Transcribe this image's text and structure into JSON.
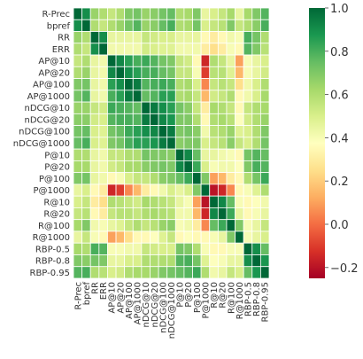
{
  "chart_data": {
    "type": "heatmap",
    "title": "",
    "xlabel": "",
    "ylabel": "",
    "labels": [
      "R-Prec",
      "bpref",
      "RR",
      "ERR",
      "AP@10",
      "AP@20",
      "AP@100",
      "AP@1000",
      "nDCG@10",
      "nDCG@20",
      "nDCG@100",
      "nDCG@1000",
      "P@10",
      "P@20",
      "P@100",
      "P@1000",
      "R@10",
      "R@20",
      "R@100",
      "R@1000",
      "RBP-0.5",
      "RBP-0.8",
      "RBP-0.95"
    ],
    "y_tick_labels": [
      "R-Prec",
      "bpref",
      "RR",
      "ERR",
      "AP@10",
      "AP@20",
      "AP@100",
      "AP@1000",
      "nDCG@10",
      "nDCG@20",
      "nDCG@100",
      "nDCG@1000",
      "P@10",
      "P@20",
      "P@100",
      "P@1000",
      "R@10",
      "R@20",
      "R@100",
      "R@1000",
      "RBP-0.5",
      "RBP-0.8",
      "RBP-0.95"
    ],
    "x_tick_labels": [
      "R-Prec",
      "bpref",
      "RR",
      "ERR",
      "AP@10",
      "AP@20",
      "AP@100",
      "AP@1000",
      "nDCG@10",
      "nDCG@20",
      "nDCG@100",
      "nDCG@1000",
      "P@10",
      "P@20",
      "P@100",
      "P@1000",
      "R@10",
      "R@20",
      "R@100",
      "R@1000",
      "RBP-0.5",
      "RBP-0.8",
      "RBP-0.95"
    ],
    "values": [
      [
        1.0,
        0.9,
        0.65,
        0.6,
        0.55,
        0.6,
        0.7,
        0.72,
        0.65,
        0.68,
        0.72,
        0.75,
        0.6,
        0.62,
        0.7,
        0.45,
        0.5,
        0.55,
        0.62,
        0.45,
        0.62,
        0.7,
        0.78
      ],
      [
        0.9,
        1.0,
        0.6,
        0.55,
        0.6,
        0.65,
        0.72,
        0.78,
        0.65,
        0.68,
        0.75,
        0.8,
        0.6,
        0.62,
        0.72,
        0.5,
        0.55,
        0.58,
        0.7,
        0.55,
        0.6,
        0.68,
        0.8
      ],
      [
        0.65,
        0.6,
        1.0,
        0.9,
        0.45,
        0.45,
        0.45,
        0.45,
        0.55,
        0.52,
        0.5,
        0.5,
        0.45,
        0.45,
        0.45,
        0.35,
        0.3,
        0.35,
        0.42,
        0.4,
        0.8,
        0.72,
        0.6
      ],
      [
        0.6,
        0.55,
        0.9,
        1.0,
        0.42,
        0.42,
        0.42,
        0.42,
        0.52,
        0.5,
        0.48,
        0.48,
        0.42,
        0.42,
        0.42,
        0.3,
        0.25,
        0.3,
        0.4,
        0.35,
        0.78,
        0.7,
        0.58
      ],
      [
        0.55,
        0.6,
        0.45,
        0.42,
        1.0,
        0.92,
        0.85,
        0.8,
        0.82,
        0.78,
        0.72,
        0.7,
        0.55,
        0.52,
        0.35,
        -0.15,
        0.6,
        0.55,
        0.45,
        0.1,
        0.4,
        0.45,
        0.5
      ],
      [
        0.6,
        0.65,
        0.45,
        0.42,
        0.92,
        1.0,
        0.9,
        0.85,
        0.8,
        0.8,
        0.75,
        0.72,
        0.55,
        0.55,
        0.4,
        -0.1,
        0.58,
        0.58,
        0.48,
        0.15,
        0.4,
        0.45,
        0.52
      ],
      [
        0.7,
        0.72,
        0.45,
        0.42,
        0.85,
        0.9,
        1.0,
        0.95,
        0.78,
        0.8,
        0.82,
        0.8,
        0.6,
        0.62,
        0.5,
        0.05,
        0.55,
        0.58,
        0.55,
        0.25,
        0.42,
        0.5,
        0.6
      ],
      [
        0.72,
        0.78,
        0.45,
        0.42,
        0.8,
        0.85,
        0.95,
        1.0,
        0.75,
        0.78,
        0.85,
        0.85,
        0.6,
        0.62,
        0.55,
        0.15,
        0.52,
        0.55,
        0.6,
        0.35,
        0.42,
        0.5,
        0.62
      ],
      [
        0.65,
        0.65,
        0.55,
        0.52,
        0.82,
        0.8,
        0.78,
        0.75,
        1.0,
        0.95,
        0.9,
        0.85,
        0.72,
        0.68,
        0.55,
        0.3,
        0.62,
        0.6,
        0.55,
        0.35,
        0.55,
        0.6,
        0.62
      ],
      [
        0.68,
        0.68,
        0.52,
        0.5,
        0.78,
        0.8,
        0.8,
        0.78,
        0.95,
        1.0,
        0.92,
        0.88,
        0.7,
        0.7,
        0.6,
        0.35,
        0.6,
        0.62,
        0.58,
        0.38,
        0.52,
        0.6,
        0.65
      ],
      [
        0.72,
        0.75,
        0.5,
        0.48,
        0.72,
        0.75,
        0.82,
        0.85,
        0.9,
        0.92,
        1.0,
        0.95,
        0.7,
        0.72,
        0.68,
        0.42,
        0.58,
        0.6,
        0.65,
        0.48,
        0.5,
        0.6,
        0.7
      ],
      [
        0.75,
        0.8,
        0.5,
        0.48,
        0.7,
        0.72,
        0.8,
        0.85,
        0.85,
        0.88,
        0.95,
        1.0,
        0.68,
        0.7,
        0.7,
        0.5,
        0.55,
        0.58,
        0.68,
        0.55,
        0.5,
        0.6,
        0.72
      ],
      [
        0.6,
        0.6,
        0.45,
        0.42,
        0.55,
        0.55,
        0.6,
        0.6,
        0.72,
        0.7,
        0.7,
        0.68,
        1.0,
        0.92,
        0.75,
        0.45,
        0.45,
        0.42,
        0.4,
        0.35,
        0.72,
        0.78,
        0.75
      ],
      [
        0.62,
        0.62,
        0.45,
        0.42,
        0.52,
        0.55,
        0.62,
        0.62,
        0.68,
        0.7,
        0.72,
        0.7,
        0.92,
        1.0,
        0.82,
        0.5,
        0.4,
        0.42,
        0.42,
        0.38,
        0.7,
        0.8,
        0.78
      ],
      [
        0.7,
        0.72,
        0.45,
        0.42,
        0.35,
        0.4,
        0.5,
        0.55,
        0.55,
        0.6,
        0.68,
        0.7,
        0.75,
        0.82,
        1.0,
        0.7,
        0.1,
        0.15,
        0.3,
        0.35,
        0.6,
        0.72,
        0.82
      ],
      [
        0.45,
        0.5,
        0.35,
        0.3,
        -0.15,
        -0.1,
        0.05,
        0.15,
        0.3,
        0.35,
        0.42,
        0.5,
        0.45,
        0.5,
        0.7,
        1.0,
        -0.2,
        -0.15,
        0.05,
        0.35,
        0.4,
        0.48,
        0.6
      ],
      [
        0.5,
        0.55,
        0.3,
        0.25,
        0.6,
        0.58,
        0.55,
        0.52,
        0.62,
        0.6,
        0.58,
        0.55,
        0.45,
        0.4,
        0.1,
        -0.2,
        1.0,
        0.92,
        0.75,
        0.4,
        0.35,
        0.38,
        0.42
      ],
      [
        0.55,
        0.58,
        0.35,
        0.3,
        0.55,
        0.58,
        0.58,
        0.55,
        0.6,
        0.62,
        0.6,
        0.58,
        0.42,
        0.42,
        0.15,
        -0.15,
        0.92,
        1.0,
        0.82,
        0.45,
        0.35,
        0.4,
        0.45
      ],
      [
        0.62,
        0.7,
        0.42,
        0.4,
        0.45,
        0.48,
        0.55,
        0.6,
        0.55,
        0.58,
        0.65,
        0.68,
        0.4,
        0.42,
        0.3,
        0.05,
        0.75,
        0.82,
        1.0,
        0.7,
        0.4,
        0.45,
        0.55
      ],
      [
        0.45,
        0.55,
        0.4,
        0.35,
        0.1,
        0.15,
        0.25,
        0.35,
        0.35,
        0.38,
        0.48,
        0.55,
        0.35,
        0.38,
        0.35,
        0.35,
        0.4,
        0.45,
        0.7,
        1.0,
        0.4,
        0.45,
        0.5
      ],
      [
        0.62,
        0.6,
        0.8,
        0.78,
        0.4,
        0.4,
        0.42,
        0.42,
        0.55,
        0.52,
        0.5,
        0.5,
        0.72,
        0.7,
        0.6,
        0.4,
        0.35,
        0.35,
        0.4,
        0.4,
        1.0,
        0.9,
        0.75
      ],
      [
        0.7,
        0.68,
        0.72,
        0.7,
        0.45,
        0.45,
        0.5,
        0.5,
        0.6,
        0.6,
        0.6,
        0.6,
        0.78,
        0.8,
        0.72,
        0.48,
        0.38,
        0.4,
        0.45,
        0.45,
        0.9,
        1.0,
        0.88
      ],
      [
        0.78,
        0.8,
        0.6,
        0.58,
        0.5,
        0.52,
        0.6,
        0.62,
        0.62,
        0.65,
        0.7,
        0.72,
        0.75,
        0.78,
        0.82,
        0.6,
        0.42,
        0.45,
        0.55,
        0.5,
        0.75,
        0.88,
        1.0
      ]
    ],
    "colorbar": {
      "min": -0.25,
      "max": 1.0,
      "ticks": [
        1.0,
        0.8,
        0.6,
        0.4,
        0.2,
        0.0,
        -0.2
      ],
      "tick_labels": [
        "1.0",
        "0.8",
        "0.6",
        "0.4",
        "0.2",
        "0.0",
        "−0.2"
      ],
      "colormap": "RdYlGn",
      "colormap_stops": [
        "#a50026",
        "#d73027",
        "#f46d43",
        "#fdae61",
        "#fee08b",
        "#ffffbf",
        "#d9ef8b",
        "#a6d96a",
        "#66bd63",
        "#1a9850",
        "#006837"
      ]
    },
    "grid": true,
    "grid_color": "#ffffff",
    "legend": "colorbar-right"
  }
}
